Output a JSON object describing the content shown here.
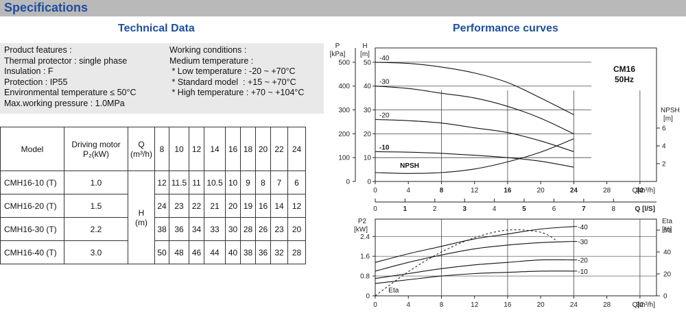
{
  "banner": {
    "title": "Specifications"
  },
  "left": {
    "title": "Technical Data",
    "features": [
      "Product features :",
      "Thermal protector : single phase",
      "Insulation : F",
      "Protection : IP55",
      "Environmental temperature ≤ 50°C",
      "Max.working pressure : 1.0MPa"
    ],
    "conditions": [
      "Working conditions :",
      "Medium temperature :",
      " * Low temperature : -20 ~ +70°C",
      " * Standard model  : +15 ~ +70°C",
      " * High temperature : +70 ~ +104°C"
    ]
  },
  "table": {
    "header_model": "Model",
    "header_motor": [
      "Driving motor",
      "P₂(kW)"
    ],
    "header_q": [
      "Q",
      "(m³/h)"
    ],
    "h_label": [
      "H",
      "(m)"
    ],
    "q_values": [
      "8",
      "10",
      "12",
      "14",
      "16",
      "18",
      "20",
      "22",
      "24"
    ],
    "rows": [
      {
        "model": "CMH16-10 (T)",
        "power": "1.0",
        "heads": [
          "12",
          "11.5",
          "11",
          "10.5",
          "10",
          "9",
          "8",
          "7",
          "6"
        ]
      },
      {
        "model": "CMH16-20 (T)",
        "power": "1.5",
        "heads": [
          "24",
          "23",
          "22",
          "21",
          "20",
          "19",
          "16",
          "14",
          "12"
        ]
      },
      {
        "model": "CMH16-30 (T)",
        "power": "2.2",
        "heads": [
          "38",
          "36",
          "34",
          "33",
          "30",
          "28",
          "26",
          "23",
          "20"
        ]
      },
      {
        "model": "CMH16-40 (T)",
        "power": "3.0",
        "heads": [
          "50",
          "48",
          "46",
          "44",
          "40",
          "38",
          "36",
          "32",
          "28"
        ]
      }
    ]
  },
  "chart_data": [
    {
      "type": "line",
      "title": "Performance curves",
      "model_label": "CM16",
      "freq_label": "50Hz",
      "left_axis_p": {
        "label": [
          "P",
          "[kPa]"
        ],
        "ticks": [
          "0",
          "100",
          "200",
          "300",
          "400",
          "500"
        ]
      },
      "left_axis_h": {
        "label": [
          "H",
          "[m]"
        ],
        "ticks": [
          "0",
          "10",
          "20",
          "30",
          "40",
          "50"
        ]
      },
      "right_axis": {
        "label": [
          "NPSH",
          "[m]"
        ],
        "ticks": [
          "2",
          "4",
          "6"
        ]
      },
      "x_axis_q_m3h": {
        "label": "Q[m³/h]",
        "ticks": [
          "0",
          "4",
          "8",
          "12",
          "16",
          "20",
          "24",
          "28",
          "32"
        ],
        "range": [
          0,
          34
        ]
      },
      "x_axis_q_ls": {
        "label": "Q [l/S]",
        "ticks": [
          "0",
          "1",
          "2",
          "3",
          "4",
          "5",
          "6",
          "7",
          "8"
        ]
      },
      "ylim_h": [
        0,
        56
      ],
      "series": [
        {
          "name": "-40",
          "x": [
            0,
            4,
            8,
            12,
            16,
            20,
            24
          ],
          "y": [
            50,
            49.5,
            48,
            45.5,
            41.5,
            35,
            28
          ]
        },
        {
          "name": "-30",
          "x": [
            0,
            4,
            8,
            12,
            16,
            20,
            24
          ],
          "y": [
            40,
            39,
            37,
            35,
            31.5,
            26.5,
            20
          ]
        },
        {
          "name": "-20",
          "x": [
            0,
            4,
            8,
            12,
            16,
            20,
            24
          ],
          "y": [
            26,
            25.5,
            24.5,
            22.5,
            20.5,
            17,
            12.5
          ]
        },
        {
          "name": "-10",
          "x": [
            0,
            4,
            8,
            12,
            16,
            20,
            24
          ],
          "y": [
            12.5,
            12.3,
            11.8,
            11,
            10,
            8.5,
            6
          ]
        }
      ],
      "npsh": {
        "name": "NPSH",
        "x": [
          0,
          4,
          8,
          12,
          16,
          20,
          24
        ],
        "y": [
          1.0,
          0.9,
          1.0,
          1.4,
          2.2,
          3.3,
          4.8
        ]
      }
    },
    {
      "type": "line",
      "left_axis": {
        "label": [
          "P2",
          "[kW]"
        ],
        "ticks": [
          "0",
          "0.8",
          "1.6",
          "2.4"
        ]
      },
      "right_axis": {
        "label": [
          "Eta",
          "[%]"
        ],
        "ticks": [
          "0",
          "20",
          "40",
          "60"
        ]
      },
      "x_axis": {
        "label": "Q[m³/h]",
        "ticks": [
          "0",
          "4",
          "8",
          "12",
          "16",
          "20",
          "24",
          "28",
          "32"
        ],
        "range": [
          0,
          34
        ]
      },
      "ylim": [
        0,
        3.1
      ],
      "series": [
        {
          "name": "-40",
          "x": [
            0,
            4,
            8,
            12,
            16,
            20,
            24
          ],
          "y": [
            1.35,
            1.7,
            2.0,
            2.3,
            2.5,
            2.7,
            2.8
          ]
        },
        {
          "name": "-30",
          "x": [
            0,
            4,
            8,
            12,
            16,
            20,
            24
          ],
          "y": [
            1.0,
            1.35,
            1.65,
            1.9,
            2.05,
            2.15,
            2.2
          ]
        },
        {
          "name": "-20",
          "x": [
            0,
            4,
            8,
            12,
            16,
            20,
            24
          ],
          "y": [
            0.7,
            0.9,
            1.1,
            1.25,
            1.35,
            1.45,
            1.45
          ]
        },
        {
          "name": "-10",
          "x": [
            0,
            4,
            8,
            12,
            16,
            20,
            24
          ],
          "y": [
            0.5,
            0.65,
            0.8,
            0.9,
            0.95,
            1.0,
            1.0
          ]
        }
      ],
      "eta": {
        "name": "Eta",
        "x": [
          0,
          4,
          8,
          12,
          16,
          20,
          22
        ],
        "y": [
          0,
          22,
          40,
          53,
          60,
          58,
          50
        ]
      }
    }
  ]
}
